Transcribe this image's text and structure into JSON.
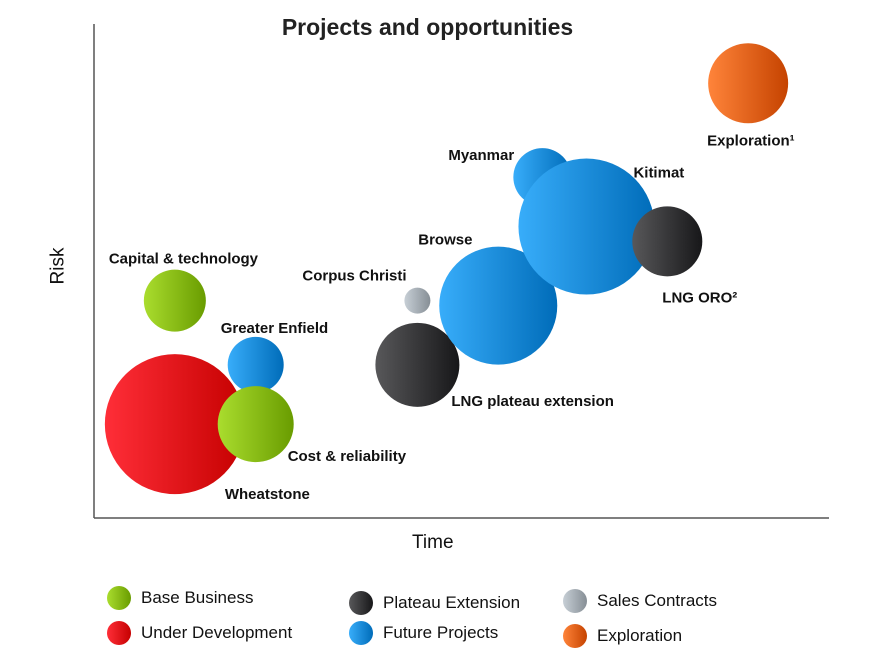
{
  "chart_data": {
    "type": "bubble",
    "title": "Projects and opportunities",
    "xlabel": "Time",
    "ylabel": "Risk",
    "xlim": [
      0,
      100
    ],
    "ylim": [
      0,
      100
    ],
    "grid": false,
    "legend_position": "bottom",
    "categories": [
      {
        "key": "base",
        "name": "Base Business",
        "color": "#8cbf10"
      },
      {
        "key": "plateau",
        "name": "Plateau Extension",
        "color": "#3a3a3c"
      },
      {
        "key": "sales",
        "name": "Sales Contracts",
        "color": "#a9b1b8"
      },
      {
        "key": "underdev",
        "name": "Under Development",
        "color": "#e8101a"
      },
      {
        "key": "future",
        "name": "Future Projects",
        "color": "#1a8fdc"
      },
      {
        "key": "exploration",
        "name": "Exploration",
        "color": "#e8661c"
      }
    ],
    "points": [
      {
        "label": "Wheatstone",
        "category": "underdev",
        "x": 11,
        "y": 19,
        "size": 70
      },
      {
        "label": "Greater Enfield",
        "category": "future",
        "x": 22,
        "y": 31,
        "size": 28
      },
      {
        "label": "Cost & reliability",
        "category": "base",
        "x": 22,
        "y": 19,
        "size": 38
      },
      {
        "label": "Capital & technology",
        "category": "base",
        "x": 11,
        "y": 44,
        "size": 31
      },
      {
        "label": "Corpus Christi",
        "category": "sales",
        "x": 44,
        "y": 44,
        "size": 13
      },
      {
        "label": "LNG plateau extension",
        "category": "plateau",
        "x": 44,
        "y": 31,
        "size": 42
      },
      {
        "label": "Browse",
        "category": "future",
        "x": 55,
        "y": 43,
        "size": 59
      },
      {
        "label": "Myanmar",
        "category": "future",
        "x": 61,
        "y": 69,
        "size": 29
      },
      {
        "label": "Kitimat",
        "category": "future",
        "x": 67,
        "y": 59,
        "size": 68
      },
      {
        "label": "LNG ORO²",
        "category": "plateau",
        "x": 78,
        "y": 56,
        "size": 35
      },
      {
        "label": "Exploration¹",
        "category": "exploration",
        "x": 89,
        "y": 88,
        "size": 40
      }
    ]
  }
}
